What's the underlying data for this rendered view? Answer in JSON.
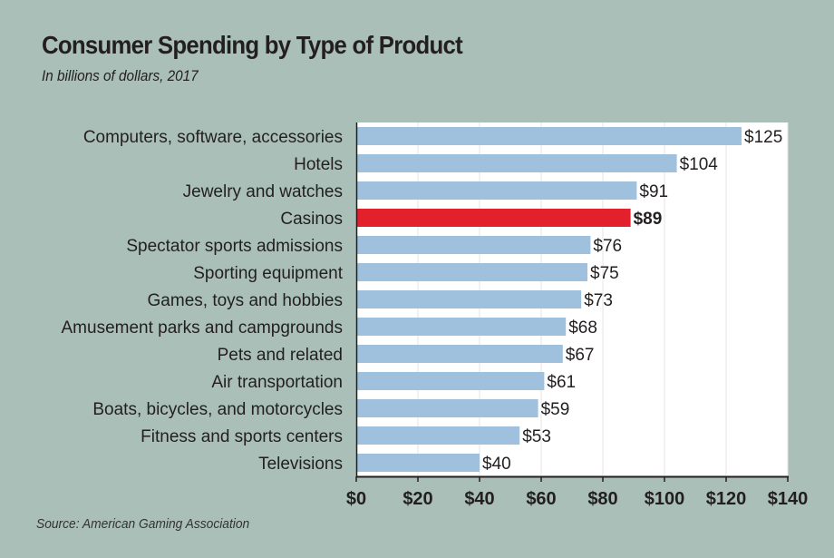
{
  "chart_data": {
    "type": "bar",
    "orientation": "horizontal",
    "title": "Consumer Spending by Type of Product",
    "subtitle": "In billions of dollars, 2017",
    "source": "Source: American Gaming Association",
    "xlabel": "",
    "ylabel": "",
    "xlim": [
      0,
      140
    ],
    "x_ticks": [
      0,
      20,
      40,
      60,
      80,
      100,
      120,
      140
    ],
    "x_tick_labels": [
      "$0",
      "$20",
      "$40",
      "$60",
      "$80",
      "$100",
      "$120",
      "$140"
    ],
    "grid": "vertical",
    "categories": [
      "Computers, software, accessories",
      "Hotels",
      "Jewelry and watches",
      "Casinos",
      "Spectator sports admissions",
      "Sporting equipment",
      "Games, toys and hobbies",
      "Amusement parks and campgrounds",
      "Pets and related",
      "Air transportation",
      "Boats, bicycles, and motorcycles",
      "Fitness and sports centers",
      "Televisions"
    ],
    "values": [
      125,
      104,
      91,
      89,
      76,
      75,
      73,
      68,
      67,
      61,
      59,
      53,
      40
    ],
    "value_labels": [
      "$125",
      "$104",
      "$91",
      "$89",
      "$76",
      "$75",
      "$73",
      "$68",
      "$67",
      "$61",
      "$59",
      "$53",
      "$40"
    ],
    "highlight": "Casinos",
    "colors": {
      "bar": "#9fc1de",
      "highlight": "#e3212d",
      "plot_bg": "#ffffff",
      "page_bg": "#a9bfb7"
    }
  }
}
